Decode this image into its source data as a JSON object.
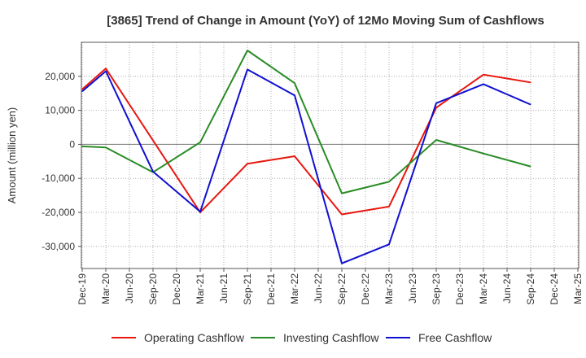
{
  "chart_data": {
    "type": "line",
    "title": "[3865]  Trend of Change in Amount (YoY) of 12Mo Moving Sum of Cashflows",
    "xlabel": "",
    "ylabel": "Amount (million yen)",
    "ylim": [
      -36500,
      30000
    ],
    "yticks": [
      20000,
      10000,
      0,
      -10000,
      -20000,
      -30000
    ],
    "ytick_labels": [
      "20,000",
      "10,000",
      "0",
      "-10,000",
      "-20,000",
      "-30,000"
    ],
    "categories": [
      "Dec-19",
      "Mar-20",
      "Jun-20",
      "Sep-20",
      "Dec-20",
      "Mar-21",
      "Jun-21",
      "Sep-21",
      "Dec-21",
      "Mar-22",
      "Jun-22",
      "Sep-22",
      "Dec-22",
      "Mar-23",
      "Jun-23",
      "Sep-23",
      "Dec-23",
      "Mar-24",
      "Jun-24",
      "Sep-24",
      "Dec-24",
      "Mar-25"
    ],
    "series": [
      {
        "name": "Operating Cashflow",
        "color": "#e8170f",
        "values": [
          16200,
          22300,
          null,
          null,
          null,
          -20000,
          null,
          -5700,
          null,
          -3500,
          null,
          -20600,
          null,
          -18300,
          null,
          10800,
          null,
          20500,
          null,
          18200,
          null,
          null
        ]
      },
      {
        "name": "Investing Cashflow",
        "color": "#2a8c26",
        "values": [
          -600,
          -900,
          null,
          -8200,
          null,
          600,
          null,
          27600,
          null,
          18000,
          null,
          -14400,
          null,
          -11000,
          null,
          1300,
          null,
          -2700,
          null,
          -6500,
          null,
          null
        ]
      },
      {
        "name": "Free Cashflow",
        "color": "#1010d0",
        "values": [
          15600,
          21500,
          null,
          -8000,
          null,
          -19800,
          null,
          22000,
          null,
          14400,
          null,
          -35000,
          null,
          -29400,
          null,
          12100,
          null,
          17700,
          null,
          11700,
          null,
          null
        ]
      }
    ],
    "legend_position": "bottom",
    "grid": true
  }
}
